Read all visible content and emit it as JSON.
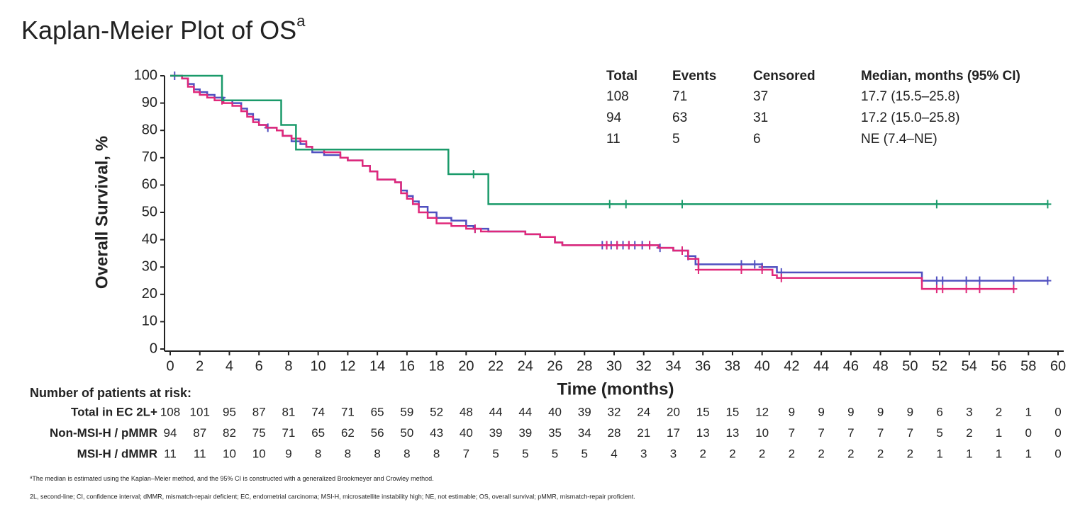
{
  "chart_data": {
    "type": "km",
    "title": "Kaplan-Meier Plot of OS",
    "title_superscript": "a",
    "x_label": "Time (months)",
    "y_label": "Overall Survival, %",
    "xlim": [
      0,
      60
    ],
    "ylim": [
      0,
      100
    ],
    "xticks": [
      0,
      2,
      4,
      6,
      8,
      10,
      12,
      14,
      16,
      18,
      20,
      22,
      24,
      26,
      28,
      30,
      32,
      34,
      36,
      38,
      40,
      42,
      44,
      46,
      48,
      50,
      52,
      54,
      56,
      58,
      60
    ],
    "yticks": [
      0,
      10,
      20,
      30,
      40,
      50,
      60,
      70,
      80,
      90,
      100
    ],
    "grid": false,
    "summary_table": {
      "headers": [
        "Total",
        "Events",
        "Censored",
        "Median, months (95% CI)"
      ],
      "rows": [
        [
          108,
          71,
          37,
          "17.7 (15.5–25.8)"
        ],
        [
          94,
          63,
          31,
          "17.2 (15.0–25.8)"
        ],
        [
          11,
          5,
          6,
          "NE (7.4–NE)"
        ]
      ]
    },
    "risk_table_title": "Number of patients at risk:",
    "series": [
      {
        "name": "Total in EC 2L+",
        "color": "#5050c0",
        "x": [
          0,
          0.8,
          1.2,
          1.6,
          2,
          2.5,
          3,
          3.6,
          4.2,
          4.8,
          5.2,
          5.6,
          6,
          6.5,
          7.2,
          7.6,
          8.2,
          8.8,
          9.2,
          9.6,
          10.4,
          11.5,
          12,
          13,
          13.5,
          14,
          15.2,
          15.6,
          16,
          16.4,
          16.8,
          17.4,
          18,
          19,
          20,
          20.5,
          21.5,
          24,
          25,
          26,
          26.5,
          33,
          34,
          35,
          35.5,
          40,
          41,
          50.8,
          59.3
        ],
        "values": [
          100,
          99,
          97,
          95,
          94,
          93,
          92,
          91,
          90,
          88,
          86,
          84,
          82,
          81,
          80,
          78,
          76,
          75,
          74,
          72,
          71,
          70,
          69,
          67,
          65,
          62,
          61,
          58,
          56,
          54,
          52,
          50,
          48,
          47,
          45,
          44,
          43,
          42,
          41,
          39,
          38,
          37,
          36,
          34,
          31,
          30,
          28,
          25,
          25
        ],
        "censor_times": [
          0.3,
          3.5,
          6.6,
          20.6,
          29.2,
          29.5,
          29.8,
          30.2,
          30.6,
          31,
          31.4,
          31.9,
          32.4,
          33.1,
          34.6,
          35,
          38.6,
          39.5,
          40,
          41.3,
          51.8,
          52.2,
          53.8,
          54.7,
          57,
          59.3
        ],
        "at_risk": [
          108,
          101,
          95,
          87,
          81,
          74,
          71,
          65,
          59,
          52,
          48,
          44,
          44,
          40,
          39,
          32,
          24,
          20,
          15,
          15,
          12,
          9,
          9,
          9,
          9,
          9,
          6,
          3,
          2,
          1,
          0
        ]
      },
      {
        "name": "Non-MSI-H / pMMR",
        "color": "#e0287a",
        "x": [
          0,
          0.8,
          1.2,
          1.6,
          2,
          2.5,
          3,
          3.6,
          4.2,
          4.8,
          5.2,
          5.6,
          6,
          6.5,
          7.2,
          7.6,
          8.2,
          8.8,
          9.2,
          9.6,
          10.4,
          11.5,
          12,
          13,
          13.5,
          14,
          15.2,
          15.6,
          16,
          16.4,
          16.8,
          17.4,
          18,
          19,
          20,
          21,
          24,
          25,
          26,
          26.5,
          33,
          34,
          35,
          35.7,
          40.7,
          41,
          50.8,
          57
        ],
        "values": [
          100,
          99,
          96,
          94,
          93,
          92,
          91,
          90,
          89,
          87,
          85,
          83,
          82,
          81,
          80,
          78,
          77,
          76,
          74,
          73,
          72,
          70,
          69,
          67,
          65,
          62,
          61,
          57,
          55,
          53,
          50,
          48,
          46,
          45,
          44,
          43,
          42,
          41,
          39,
          38,
          37,
          36,
          33,
          29,
          27,
          26,
          22,
          22
        ],
        "censor_times": [
          3.5,
          20.6,
          29.5,
          30.2,
          31,
          32.4,
          34.6,
          35.7,
          38.6,
          40,
          41.3,
          51.8,
          52.2,
          53.8,
          54.7,
          57
        ],
        "at_risk": [
          94,
          87,
          82,
          75,
          71,
          65,
          62,
          56,
          50,
          43,
          40,
          39,
          39,
          35,
          34,
          28,
          21,
          17,
          13,
          13,
          10,
          7,
          7,
          7,
          7,
          7,
          5,
          2,
          1,
          0,
          0
        ]
      },
      {
        "name": "MSI-H / dMMR",
        "color": "#1a9a6a",
        "x": [
          0,
          3.5,
          7.5,
          8.5,
          18.8,
          21.5,
          59.3
        ],
        "values": [
          100,
          91,
          82,
          73,
          64,
          53,
          53
        ],
        "censor_times": [
          20.5,
          29.7,
          30.8,
          34.6,
          51.8,
          59.3
        ],
        "at_risk": [
          11,
          11,
          10,
          10,
          9,
          8,
          8,
          8,
          8,
          8,
          7,
          5,
          5,
          5,
          5,
          4,
          3,
          3,
          2,
          2,
          2,
          2,
          2,
          2,
          2,
          2,
          1,
          1,
          1,
          1,
          0
        ]
      }
    ],
    "footnotes": [
      "The median is estimated using the Kaplan–Meier method, and the 95% CI is constructed with a generalized Brookmeyer and Crowley method.",
      "2L, second-line; CI, confidence interval; dMMR, mismatch-repair deficient; EC, endometrial carcinoma; MSI-H, microsatellite instability high; NE, not estimable; OS, overall survival; pMMR, mismatch-repair proficient."
    ]
  }
}
